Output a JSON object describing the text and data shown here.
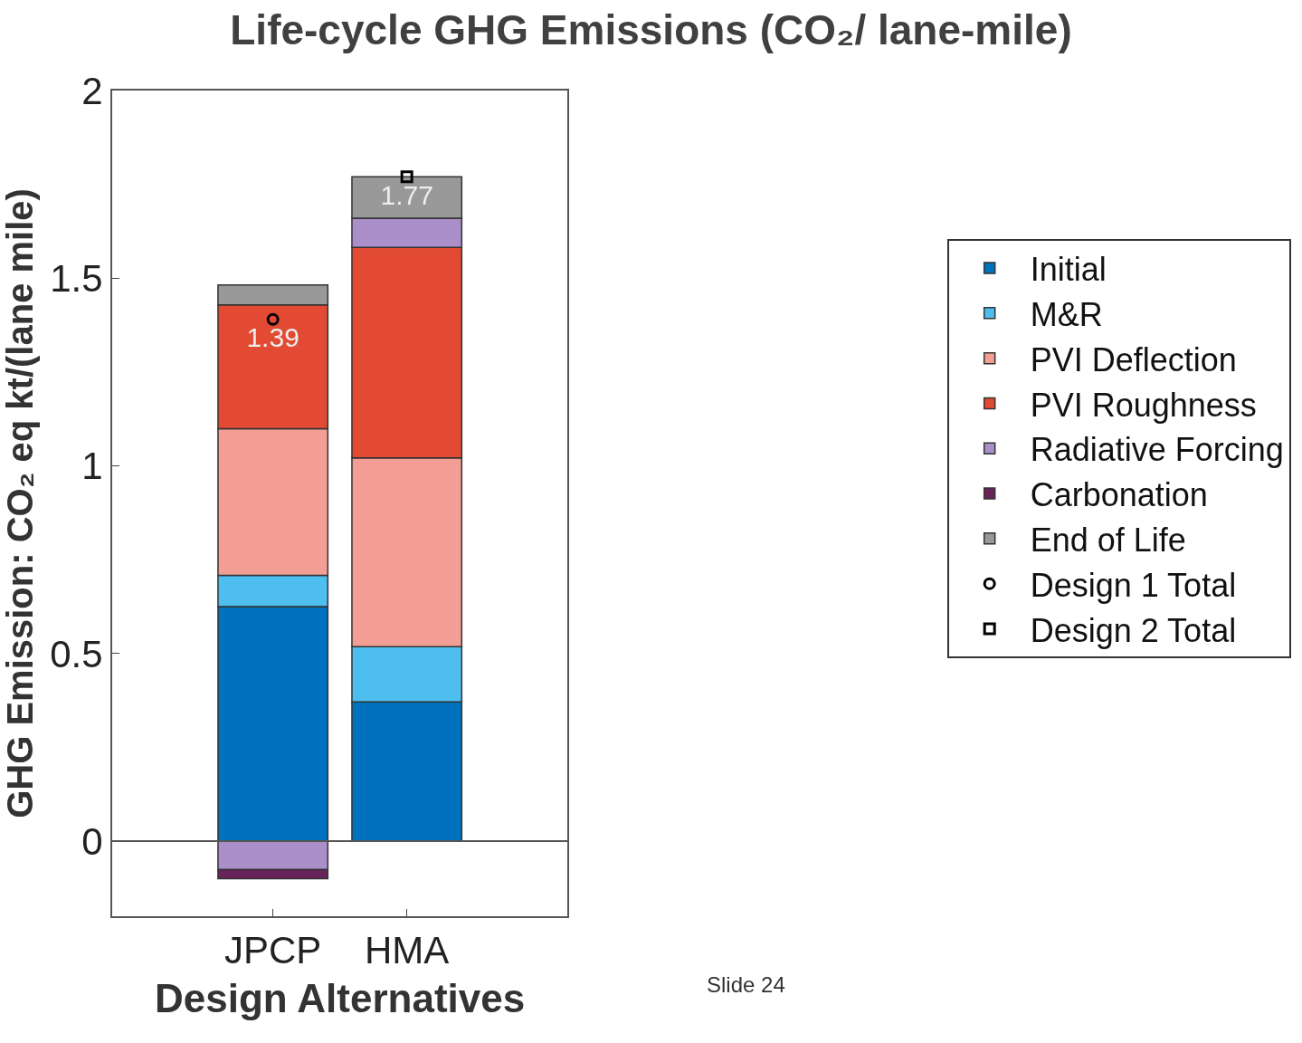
{
  "chart_data": {
    "type": "bar",
    "stacked": true,
    "title": "Life-cycle GHG Emissions (CO₂/ lane-mile)",
    "xlabel": "Design Alternatives",
    "ylabel": "GHG Emission: CO₂ eq kt/(lane mile)",
    "categories": [
      "JPCP",
      "HMA"
    ],
    "ylim": [
      -0.2,
      2
    ],
    "yticks": [
      0,
      0.5,
      1,
      1.5,
      2
    ],
    "ref_lines": [
      {
        "axis": "y",
        "value": 0,
        "color": "#555555"
      }
    ],
    "legend": "right",
    "annotations": [
      "Slide 24"
    ],
    "series": [
      {
        "name": "Initial",
        "color": "#0072bd",
        "values": [
          0.625,
          0.371
        ]
      },
      {
        "name": "M&R",
        "color": "#4dbeee",
        "values": [
          0.083,
          0.147
        ]
      },
      {
        "name": "PVI Deflection",
        "color": "#f29e94",
        "values": [
          0.391,
          0.503
        ]
      },
      {
        "name": "PVI Roughness",
        "color": "#e24a33",
        "values": [
          0.33,
          0.561
        ]
      },
      {
        "name": "Radiative Forcing",
        "color": "#ab8fc9",
        "values": [
          -0.076,
          0.078
        ]
      },
      {
        "name": "Carbonation",
        "color": "#68245a",
        "values": [
          -0.024,
          0
        ]
      },
      {
        "name": "End of Life",
        "color": "#999999",
        "values": [
          0.053,
          0.11
        ]
      },
      {
        "name": "Design 1 Total",
        "type": "scatter",
        "marker": "circle",
        "color": "#000000",
        "values": [
          1.39,
          null
        ],
        "value_labels": [
          "1.39",
          null
        ]
      },
      {
        "name": "Design 2 Total",
        "type": "scatter",
        "marker": "square",
        "color": "#000000",
        "values": [
          null,
          1.77
        ],
        "value_labels": [
          null,
          "1.77"
        ]
      }
    ]
  }
}
